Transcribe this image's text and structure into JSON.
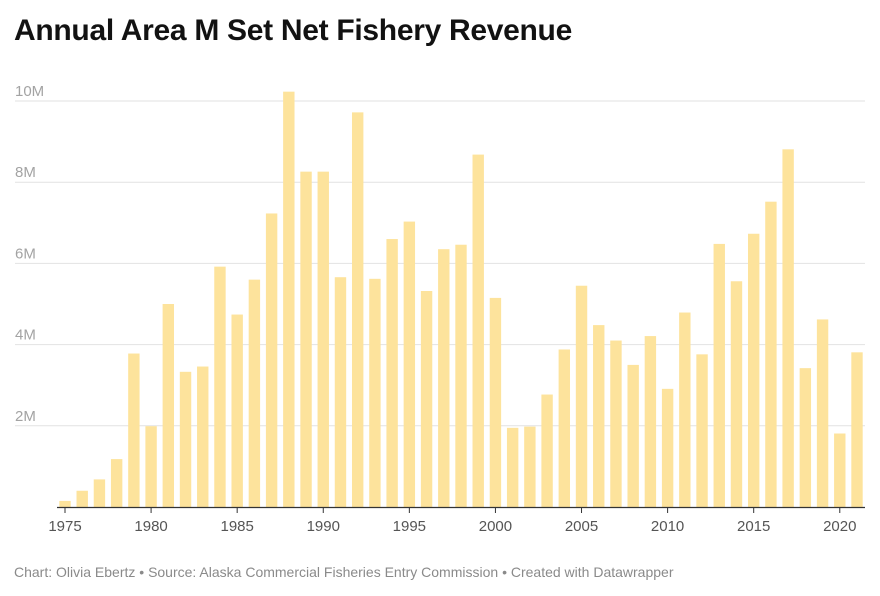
{
  "title": "Annual Area M Set Net Fishery Revenue",
  "footer": {
    "chart_by": "Chart: Olivia Ebertz",
    "separator": "•",
    "source": "Source: Alaska Commercial Fisheries Entry Commission",
    "created_with": "Created with Datawrapper"
  },
  "colors": {
    "bar": "#fde39c",
    "grid": "#e2e2e2",
    "axis": "#333333",
    "tick_text": "#a3a3a3",
    "x_tick_text": "#555555"
  },
  "chart_data": {
    "type": "bar",
    "title": "Annual Area M Set Net Fishery Revenue",
    "xlabel": "",
    "ylabel": "",
    "ylim": [
      0,
      10500000
    ],
    "grid": true,
    "y_ticks": [
      2000000,
      4000000,
      6000000,
      8000000,
      10000000
    ],
    "y_tick_labels": [
      "2M",
      "4M",
      "6M",
      "8M",
      "10M"
    ],
    "x_ticks": [
      1975,
      1980,
      1985,
      1990,
      1995,
      2000,
      2005,
      2010,
      2015,
      2020
    ],
    "x_tick_labels": [
      "1975",
      "1980",
      "1985",
      "1990",
      "1995",
      "2000",
      "2005",
      "2010",
      "2015",
      "2020"
    ],
    "categories": [
      1975,
      1976,
      1977,
      1978,
      1979,
      1980,
      1981,
      1982,
      1983,
      1984,
      1985,
      1986,
      1987,
      1988,
      1989,
      1990,
      1991,
      1992,
      1993,
      1994,
      1995,
      1996,
      1997,
      1998,
      1999,
      2000,
      2001,
      2002,
      2003,
      2004,
      2005,
      2006,
      2007,
      2008,
      2009,
      2010,
      2011,
      2012,
      2013,
      2014,
      2015,
      2016,
      2017,
      2018,
      2019,
      2020,
      2021
    ],
    "values": [
      150000,
      400000,
      680000,
      1180000,
      3780000,
      1990000,
      5000000,
      3330000,
      3460000,
      5920000,
      4740000,
      5600000,
      7230000,
      10230000,
      8260000,
      8260000,
      5660000,
      9720000,
      5620000,
      6600000,
      7030000,
      5320000,
      6350000,
      6460000,
      8680000,
      5150000,
      1950000,
      1980000,
      2770000,
      3880000,
      5450000,
      4480000,
      4100000,
      3500000,
      4210000,
      2910000,
      4790000,
      3760000,
      6480000,
      5560000,
      6730000,
      7520000,
      8810000,
      3420000,
      4620000,
      1810000,
      3810000
    ]
  }
}
